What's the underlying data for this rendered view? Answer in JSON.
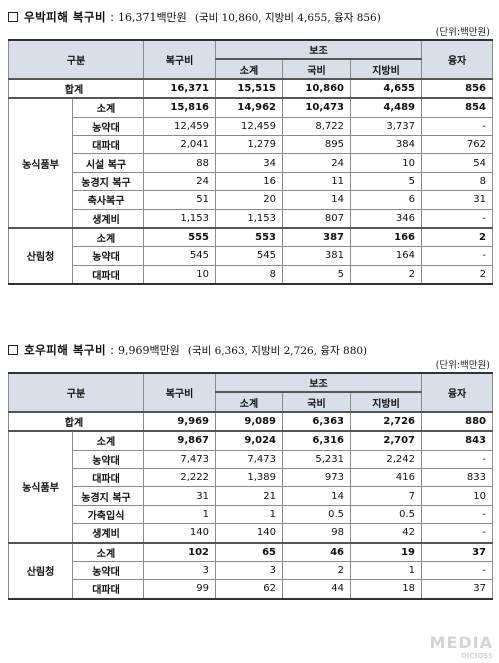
{
  "sections": [
    {
      "title": "우박피해 복구비",
      "separator": ":",
      "amount": "16,371백만원",
      "detail": "(국비 10,860, 지방비 4,655, 융자 856)",
      "unit": "(단위:백만원)",
      "headers": {
        "category": "구분",
        "recovery": "복구비",
        "subsidy": "보조",
        "subtotal": "소계",
        "national": "국비",
        "local": "지방비",
        "loan": "융자"
      },
      "total": {
        "label": "합계",
        "values": [
          "16,371",
          "15,515",
          "10,860",
          "4,655",
          "856"
        ]
      },
      "groups": [
        {
          "name": "농식품부",
          "rows": [
            {
              "label": "소계",
              "values": [
                "15,816",
                "14,962",
                "10,473",
                "4,489",
                "854"
              ],
              "bold": true
            },
            {
              "label": "농약대",
              "values": [
                "12,459",
                "12,459",
                "8,722",
                "3,737",
                "-"
              ]
            },
            {
              "label": "대파대",
              "values": [
                "2,041",
                "1,279",
                "895",
                "384",
                "762"
              ]
            },
            {
              "label": "시설 복구",
              "values": [
                "88",
                "34",
                "24",
                "10",
                "54"
              ]
            },
            {
              "label": "농경지 복구",
              "values": [
                "24",
                "16",
                "11",
                "5",
                "8"
              ]
            },
            {
              "label": "축사복구",
              "values": [
                "51",
                "20",
                "14",
                "6",
                "31"
              ]
            },
            {
              "label": "생계비",
              "values": [
                "1,153",
                "1,153",
                "807",
                "346",
                "-"
              ]
            }
          ]
        },
        {
          "name": "산림청",
          "rows": [
            {
              "label": "소계",
              "values": [
                "555",
                "553",
                "387",
                "166",
                "2"
              ],
              "bold": true
            },
            {
              "label": "농약대",
              "values": [
                "545",
                "545",
                "381",
                "164",
                "-"
              ]
            },
            {
              "label": "대파대",
              "values": [
                "10",
                "8",
                "5",
                "2",
                "2"
              ]
            }
          ]
        }
      ]
    },
    {
      "title": "호우피해 복구비",
      "separator": ":",
      "amount": "9,969백만원",
      "detail": "(국비 6,363, 지방비 2,726, 융자 880)",
      "unit": "(단위:백만원)",
      "headers": {
        "category": "구분",
        "recovery": "복구비",
        "subsidy": "보조",
        "subtotal": "소계",
        "national": "국비",
        "local": "지방비",
        "loan": "융자"
      },
      "total": {
        "label": "합계",
        "values": [
          "9,969",
          "9,089",
          "6,363",
          "2,726",
          "880"
        ]
      },
      "groups": [
        {
          "name": "농식품부",
          "rows": [
            {
              "label": "소계",
              "values": [
                "9,867",
                "9,024",
                "6,316",
                "2,707",
                "843"
              ],
              "bold": true
            },
            {
              "label": "농약대",
              "values": [
                "7,473",
                "7,473",
                "5,231",
                "2,242",
                "-"
              ]
            },
            {
              "label": "대파대",
              "values": [
                "2,222",
                "1,389",
                "973",
                "416",
                "833"
              ]
            },
            {
              "label": "농경지 복구",
              "values": [
                "31",
                "21",
                "14",
                "7",
                "10"
              ]
            },
            {
              "label": "가축입식",
              "values": [
                "1",
                "1",
                "0.5",
                "0.5",
                "-"
              ]
            },
            {
              "label": "생계비",
              "values": [
                "140",
                "140",
                "98",
                "42",
                "-"
              ]
            }
          ]
        },
        {
          "name": "산림청",
          "rows": [
            {
              "label": "소계",
              "values": [
                "102",
                "65",
                "46",
                "19",
                "37"
              ],
              "bold": true
            },
            {
              "label": "농약대",
              "values": [
                "3",
                "3",
                "2",
                "1",
                "-"
              ]
            },
            {
              "label": "대파대",
              "values": [
                "99",
                "62",
                "44",
                "18",
                "37"
              ]
            }
          ]
        }
      ]
    }
  ],
  "watermark": {
    "main": "MEDIA",
    "sub": "DICIOSS"
  }
}
